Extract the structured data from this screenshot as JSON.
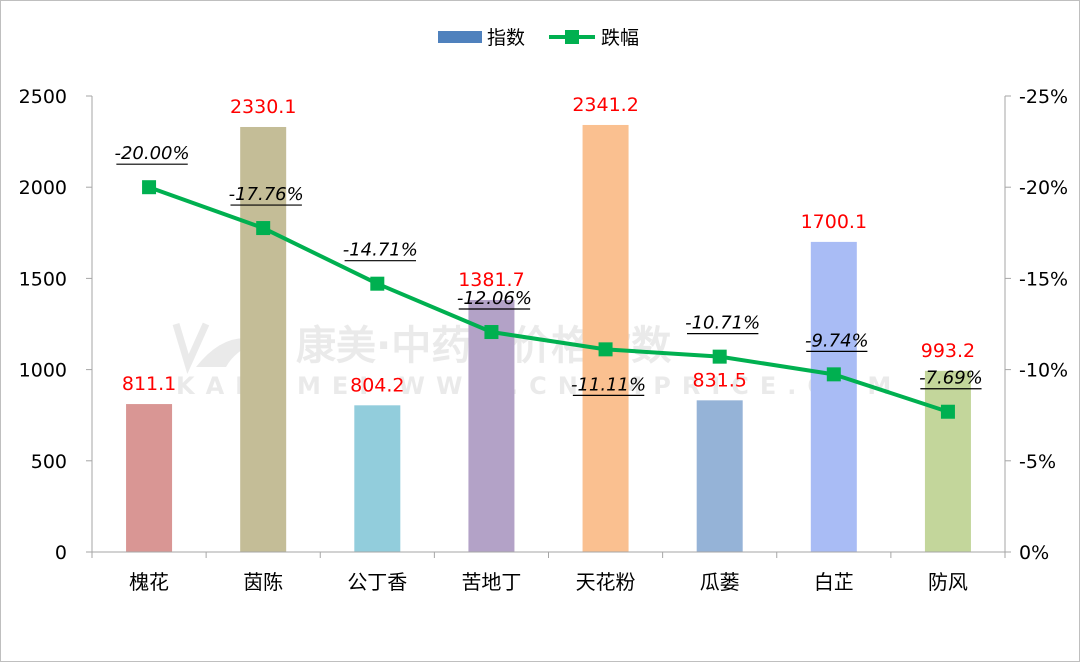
{
  "chart_data": {
    "type": "bar+line",
    "categories": [
      "槐花",
      "茵陈",
      "公丁香",
      "苦地丁",
      "天花粉",
      "瓜蒌",
      "白芷",
      "防风"
    ],
    "series": [
      {
        "name": "指数",
        "kind": "bar",
        "axis": "left",
        "values": [
          811.1,
          2330.1,
          804.2,
          1381.7,
          2341.2,
          831.5,
          1700.1,
          993.2
        ],
        "labels": [
          "811.1",
          "2330.1",
          "804.2",
          "1381.7",
          "2341.2",
          "831.5",
          "1700.1",
          "993.2"
        ],
        "colors": [
          "#d99694",
          "#c4bd97",
          "#92cddc",
          "#b3a2c7",
          "#fac090",
          "#95b3d7",
          "#a9bcf5",
          "#c3d69b"
        ],
        "label_color": "#ff0000"
      },
      {
        "name": "跌幅",
        "kind": "line",
        "axis": "right",
        "values": [
          -20.0,
          -17.76,
          -14.71,
          -12.06,
          -11.11,
          -10.71,
          -9.74,
          -7.69
        ],
        "labels": [
          "-20.00%",
          "-17.76%",
          "-14.71%",
          "-12.06%",
          "-11.11%",
          "-10.71%",
          "-9.74%",
          "-7.69%"
        ],
        "label_position": [
          "above",
          "above",
          "above",
          "above",
          "below",
          "above",
          "above",
          "above"
        ],
        "color": "#00b050"
      }
    ],
    "y_left": {
      "ylim": [
        0,
        2500
      ],
      "ticks": [
        0,
        500,
        1000,
        1500,
        2000,
        2500
      ],
      "tick_labels": [
        "0",
        "500",
        "1000",
        "1500",
        "2000",
        "2500"
      ]
    },
    "y_right": {
      "ylim": [
        0,
        -25
      ],
      "reversed": true,
      "ticks": [
        0,
        -5,
        -10,
        -15,
        -20,
        -25
      ],
      "tick_labels": [
        "0%",
        "-5%",
        "-10%",
        "-15%",
        "-20%",
        "-25%"
      ]
    },
    "legend": {
      "position": "top",
      "items": [
        {
          "label": "指数",
          "color": "#4f81bd",
          "symbol": "bar"
        },
        {
          "label": "跌幅",
          "color": "#00b050",
          "symbol": "line-square"
        }
      ]
    },
    "grid": false
  },
  "watermark": {
    "logo_text": "康美·中药材价格指数",
    "url_text": "KANGMEI WWW.CNKMPRICE.COM"
  }
}
